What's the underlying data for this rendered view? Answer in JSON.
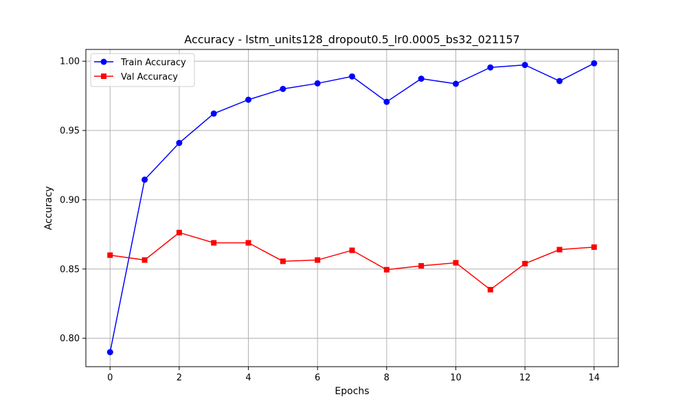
{
  "chart_data": {
    "type": "line",
    "title": "Accuracy - lstm_units128_dropout0.5_lr0.0005_bs32_021157",
    "xlabel": "Epochs",
    "ylabel": "Accuracy",
    "xlim": [
      -0.7,
      14.7
    ],
    "ylim": [
      0.7795,
      1.0085
    ],
    "xticks": [
      0,
      2,
      4,
      6,
      8,
      10,
      12,
      14
    ],
    "xtick_labels": [
      "0",
      "2",
      "4",
      "6",
      "8",
      "10",
      "12",
      "14"
    ],
    "yticks": [
      0.8,
      0.85,
      0.9,
      0.95,
      1.0
    ],
    "ytick_labels": [
      "0.80",
      "0.85",
      "0.90",
      "0.95",
      "1.00"
    ],
    "grid": true,
    "legend_position": "top-left",
    "x": [
      0,
      1,
      2,
      3,
      4,
      5,
      6,
      7,
      8,
      9,
      10,
      11,
      12,
      13,
      14
    ],
    "series": [
      {
        "name": "Train Accuracy",
        "color": "#0000ff",
        "marker": "circle",
        "values": [
          0.79,
          0.9145,
          0.941,
          0.9622,
          0.9722,
          0.98,
          0.984,
          0.989,
          0.9707,
          0.9874,
          0.9837,
          0.9955,
          0.9973,
          0.9857,
          0.9985
        ]
      },
      {
        "name": "Val Accuracy",
        "color": "#ff0000",
        "marker": "square",
        "values": [
          0.86,
          0.8565,
          0.8763,
          0.8689,
          0.8689,
          0.8556,
          0.8565,
          0.8635,
          0.8495,
          0.8523,
          0.8545,
          0.8351,
          0.8539,
          0.864,
          0.8658
        ]
      }
    ]
  }
}
